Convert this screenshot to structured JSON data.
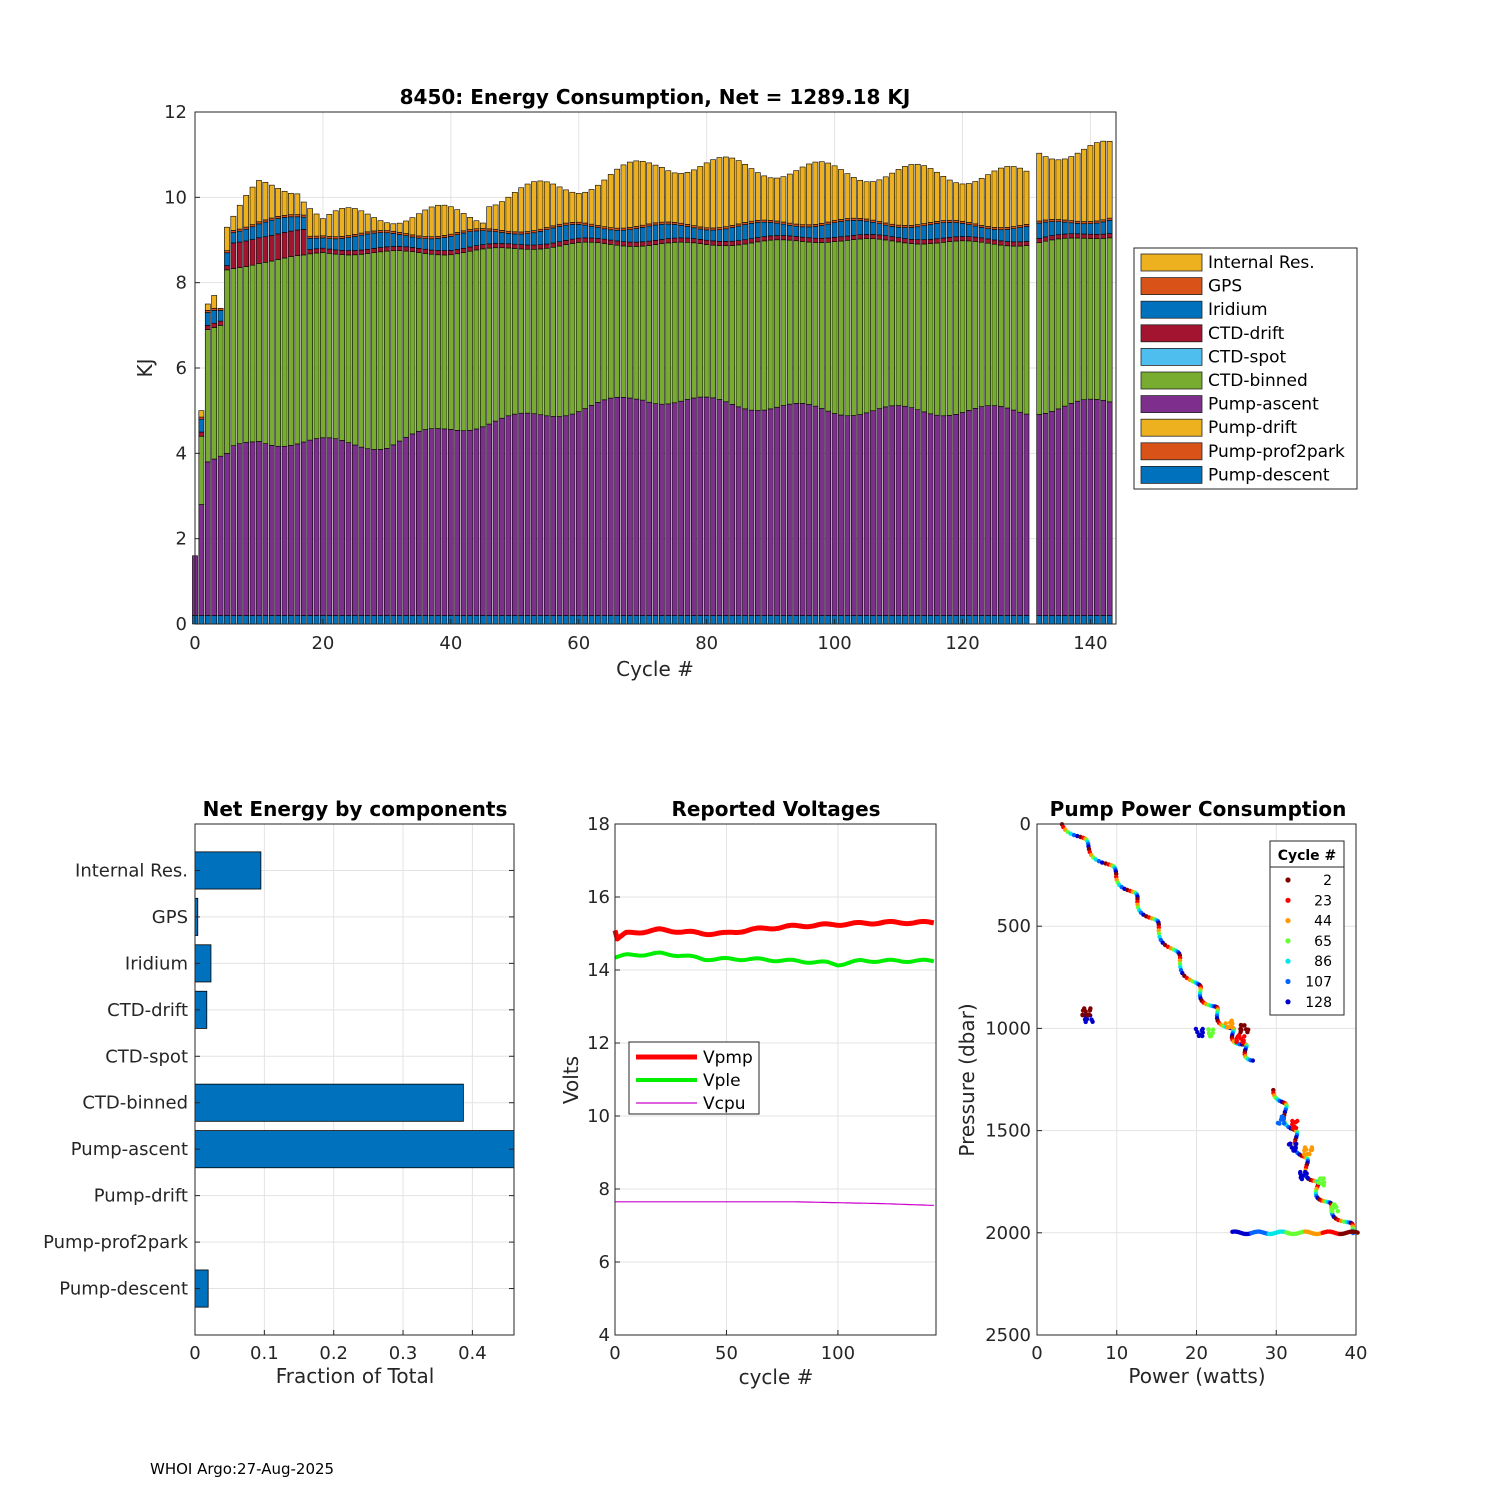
{
  "footer": "WHOI Argo:27-Aug-2025",
  "chart_data": [
    {
      "id": "energy",
      "type": "bar",
      "stacked": true,
      "title": "8450: Energy Consumption,  Net = 1289.18 KJ",
      "xlabel": "Cycle #",
      "ylabel": "KJ",
      "xlim": [
        0,
        144
      ],
      "ylim": [
        0,
        12
      ],
      "xticks": [
        0,
        20,
        40,
        60,
        80,
        100,
        120,
        140
      ],
      "yticks": [
        0,
        2,
        4,
        6,
        8,
        10,
        12
      ],
      "grid": true,
      "legend_position": "outside-right",
      "missing_cycles": [
        131
      ],
      "components": [
        {
          "name": "Internal Res.",
          "color": "#EDB120"
        },
        {
          "name": "GPS",
          "color": "#D95319"
        },
        {
          "name": "Iridium",
          "color": "#0072BD"
        },
        {
          "name": "CTD-drift",
          "color": "#A2142F"
        },
        {
          "name": "CTD-spot",
          "color": "#4DBEEE"
        },
        {
          "name": "CTD-binned",
          "color": "#77AC30"
        },
        {
          "name": "Pump-ascent",
          "color": "#7E2F8E"
        },
        {
          "name": "Pump-drift",
          "color": "#EDB120"
        },
        {
          "name": "Pump-prof2park",
          "color": "#D95319"
        },
        {
          "name": "Pump-descent",
          "color": "#0072BD"
        }
      ],
      "anchor_totals": [
        {
          "cycle": 0,
          "total": 1.6
        },
        {
          "cycle": 1,
          "total": 5.0
        },
        {
          "cycle": 2,
          "total": 7.5
        },
        {
          "cycle": 3,
          "total": 7.7
        },
        {
          "cycle": 4,
          "total": 7.4
        },
        {
          "cycle": 5,
          "total": 9.3
        },
        {
          "cycle": 10,
          "total": 10.2
        },
        {
          "cycle": 16,
          "total": 10.3
        },
        {
          "cycle": 20,
          "total": 9.5
        },
        {
          "cycle": 30,
          "total": 9.6
        },
        {
          "cycle": 45,
          "total": 9.6
        },
        {
          "cycle": 46,
          "total": 10.0
        },
        {
          "cycle": 60,
          "total": 10.3
        },
        {
          "cycle": 73,
          "total": 10.8
        },
        {
          "cycle": 100,
          "total": 10.6
        },
        {
          "cycle": 130,
          "total": 10.5
        },
        {
          "cycle": 132,
          "total": 11.1
        },
        {
          "cycle": 143,
          "total": 11.1
        }
      ],
      "anchor_pump_ascent_top": [
        {
          "cycle": 1,
          "value": 2.8
        },
        {
          "cycle": 2,
          "value": 3.8
        },
        {
          "cycle": 5,
          "value": 4.0
        },
        {
          "cycle": 10,
          "value": 4.3
        },
        {
          "cycle": 30,
          "value": 4.2
        },
        {
          "cycle": 40,
          "value": 4.6
        },
        {
          "cycle": 50,
          "value": 4.8
        },
        {
          "cycle": 70,
          "value": 5.3
        },
        {
          "cycle": 100,
          "value": 5.0
        },
        {
          "cycle": 130,
          "value": 5.0
        },
        {
          "cycle": 143,
          "value": 5.2
        }
      ],
      "anchor_ctd_binned_top": [
        {
          "cycle": 1,
          "value": 4.4
        },
        {
          "cycle": 2,
          "value": 6.9
        },
        {
          "cycle": 4,
          "value": 7.0
        },
        {
          "cycle": 5,
          "value": 8.3
        },
        {
          "cycle": 10,
          "value": 8.5
        },
        {
          "cycle": 17,
          "value": 8.6
        },
        {
          "cycle": 20,
          "value": 8.7
        },
        {
          "cycle": 40,
          "value": 8.7
        },
        {
          "cycle": 60,
          "value": 8.9
        },
        {
          "cycle": 80,
          "value": 8.9
        },
        {
          "cycle": 100,
          "value": 9.0
        },
        {
          "cycle": 130,
          "value": 8.9
        },
        {
          "cycle": 143,
          "value": 9.1
        }
      ],
      "ctd_drift_kj": {
        "early_cycles_6_to_17": 0.6,
        "later": 0.1
      },
      "iridium_kj": 0.3,
      "pump_descent_kj": 0.2
    },
    {
      "id": "components",
      "type": "bar",
      "orientation": "horizontal",
      "title": "Net Energy by components",
      "xlabel": "Fraction of Total",
      "xlim": [
        0,
        0.46
      ],
      "xticks": [
        0,
        0.1,
        0.2,
        0.3,
        0.4
      ],
      "xtick_labels": [
        "0",
        "0.1",
        "0.2",
        "0.3",
        "0.4"
      ],
      "color": "#0072BD",
      "categories": [
        "Internal Res.",
        "GPS",
        "Iridium",
        "CTD-drift",
        "CTD-spot",
        "CTD-binned",
        "Pump-ascent",
        "Pump-drift",
        "Pump-prof2park",
        "Pump-descent"
      ],
      "values": [
        0.095,
        0.004,
        0.023,
        0.017,
        0.0,
        0.387,
        0.46,
        0.0,
        0.0,
        0.019
      ]
    },
    {
      "id": "voltages",
      "type": "line",
      "title": "Reported Voltages",
      "xlabel": "cycle #",
      "ylabel": "Volts",
      "xlim": [
        0,
        144
      ],
      "ylim": [
        4,
        18
      ],
      "xticks": [
        0,
        50,
        100
      ],
      "yticks": [
        4,
        6,
        8,
        10,
        12,
        14,
        16,
        18
      ],
      "legend_position": "middle-left",
      "series": [
        {
          "name": "Vpmp",
          "color": "#FF0000",
          "points": [
            [
              0,
              15.1
            ],
            [
              1,
              14.85
            ],
            [
              5,
              15.0
            ],
            [
              20,
              15.1
            ],
            [
              40,
              15.0
            ],
            [
              50,
              15.0
            ],
            [
              60,
              15.1
            ],
            [
              80,
              15.2
            ],
            [
              100,
              15.25
            ],
            [
              120,
              15.3
            ],
            [
              143,
              15.3
            ]
          ]
        },
        {
          "name": "Vple",
          "color": "#00EE00",
          "points": [
            [
              0,
              14.35
            ],
            [
              5,
              14.4
            ],
            [
              20,
              14.45
            ],
            [
              30,
              14.4
            ],
            [
              40,
              14.3
            ],
            [
              60,
              14.3
            ],
            [
              80,
              14.25
            ],
            [
              95,
              14.2
            ],
            [
              100,
              14.15
            ],
            [
              110,
              14.25
            ],
            [
              143,
              14.25
            ]
          ]
        },
        {
          "name": "Vcpu",
          "color": "#CC00CC",
          "points": [
            [
              0,
              7.65
            ],
            [
              20,
              7.65
            ],
            [
              40,
              7.65
            ],
            [
              80,
              7.65
            ],
            [
              120,
              7.6
            ],
            [
              143,
              7.55
            ]
          ]
        }
      ]
    },
    {
      "id": "pump",
      "type": "scatter",
      "title": "Pump Power Consumption",
      "xlabel": "Power (watts)",
      "ylabel": "Pressure (dbar)",
      "xlim": [
        0,
        40
      ],
      "ylim": [
        0,
        2500
      ],
      "y_reversed": true,
      "xticks": [
        0,
        10,
        20,
        30,
        40
      ],
      "yticks": [
        0,
        500,
        1000,
        1500,
        2000,
        2500
      ],
      "legend_title": "Cycle #",
      "legend_position": "top-right",
      "cycles": [
        {
          "label": "2",
          "color": "#800000"
        },
        {
          "label": "23",
          "color": "#FF0000"
        },
        {
          "label": "44",
          "color": "#FF9900"
        },
        {
          "label": "65",
          "color": "#66FF33"
        },
        {
          "label": "86",
          "color": "#00E5E5"
        },
        {
          "label": "107",
          "color": "#0066FF"
        },
        {
          "label": "128",
          "color": "#0000CC"
        }
      ],
      "ascent_trend": [
        [
          3.5,
          0
        ],
        [
          10,
          250
        ],
        [
          15,
          500
        ],
        [
          20,
          800
        ],
        [
          24,
          1000
        ],
        [
          27,
          1150
        ]
      ],
      "deep_trend": [
        [
          30,
          1300
        ],
        [
          32,
          1500
        ],
        [
          34,
          1700
        ],
        [
          36,
          1850
        ],
        [
          40,
          2000
        ]
      ],
      "clusters": [
        {
          "x": 6.5,
          "y": 950,
          "color": "#0000CC"
        },
        {
          "x": 6.2,
          "y": 920,
          "color": "#800000"
        },
        {
          "x": 20.3,
          "y": 1020,
          "color": "#0000CC"
        },
        {
          "x": 22.0,
          "y": 1020,
          "color": "#66FF33"
        },
        {
          "x": 24.0,
          "y": 980,
          "color": "#FF9900"
        },
        {
          "x": 25.5,
          "y": 1050,
          "color": "#FF0000"
        },
        {
          "x": 26.0,
          "y": 1000,
          "color": "#800000"
        },
        {
          "x": 30.5,
          "y": 1450,
          "color": "#0066FF"
        },
        {
          "x": 32.5,
          "y": 1470,
          "color": "#FF0000"
        },
        {
          "x": 32.0,
          "y": 1580,
          "color": "#0000CC"
        },
        {
          "x": 34.0,
          "y": 1600,
          "color": "#FF9900"
        },
        {
          "x": 33.5,
          "y": 1720,
          "color": "#0000CC"
        },
        {
          "x": 35.5,
          "y": 1750,
          "color": "#66FF33"
        },
        {
          "x": 37.5,
          "y": 1880,
          "color": "#66FF33"
        }
      ],
      "bottom_line": {
        "pressure": 2000,
        "x_from": 24.5,
        "x_to": 40.2
      }
    }
  ]
}
